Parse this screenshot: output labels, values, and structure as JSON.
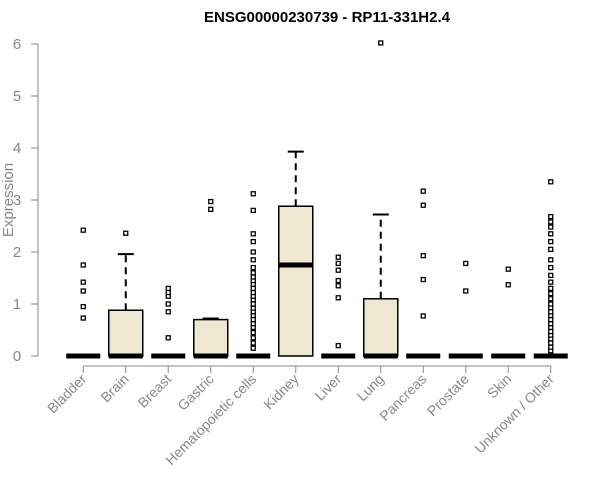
{
  "chart_data": {
    "type": "box",
    "title": "ENSG00000230739 - RP11-331H2.4",
    "xlabel": "",
    "ylabel": "Expression",
    "ylim": [
      0,
      6
    ],
    "yticks": [
      0,
      1,
      2,
      3,
      4,
      5,
      6
    ],
    "box_fill": "#efe8d0",
    "categories": [
      "Bladder",
      "Brain",
      "Breast",
      "Gastric",
      "Hematopoietic cells",
      "Kidney",
      "Liver",
      "Lung",
      "Pancreas",
      "Prostate",
      "Skin",
      "Unknown / Other"
    ],
    "boxes": [
      {
        "q1": 0,
        "median": 0,
        "q3": 0,
        "whisker_low": 0,
        "whisker_high": 0,
        "outliers": [
          0.73,
          0.95,
          1.25,
          1.42,
          1.75,
          2.42
        ]
      },
      {
        "q1": 0,
        "median": 0,
        "q3": 0.88,
        "whisker_low": 0,
        "whisker_high": 1.96,
        "outliers": [
          2.36
        ]
      },
      {
        "q1": 0,
        "median": 0,
        "q3": 0,
        "whisker_low": 0,
        "whisker_high": 0,
        "outliers": [
          0.35,
          0.85,
          1.0,
          1.15,
          1.22,
          1.3
        ]
      },
      {
        "q1": 0,
        "median": 0,
        "q3": 0.7,
        "whisker_low": 0,
        "whisker_high": 0.72,
        "outliers": [
          2.82,
          2.97
        ]
      },
      {
        "q1": 0,
        "median": 0,
        "q3": 0,
        "whisker_low": 0,
        "whisker_high": 0,
        "outliers": [
          0.15,
          0.25,
          0.35,
          0.45,
          0.55,
          0.62,
          0.7,
          0.78,
          0.85,
          0.92,
          1.0,
          1.08,
          1.15,
          1.22,
          1.3,
          1.38,
          1.45,
          1.52,
          1.6,
          1.7,
          1.85,
          2.0,
          2.2,
          2.35,
          2.8,
          3.12
        ]
      },
      {
        "q1": 0,
        "median": 1.75,
        "q3": 2.88,
        "whisker_low": 0,
        "whisker_high": 3.93,
        "outliers": []
      },
      {
        "q1": 0,
        "median": 0,
        "q3": 0,
        "whisker_low": 0,
        "whisker_high": 0,
        "outliers": [
          0.2,
          1.12,
          1.35,
          1.45,
          1.65,
          1.78,
          1.9
        ]
      },
      {
        "q1": 0,
        "median": 0,
        "q3": 1.1,
        "whisker_low": 0,
        "whisker_high": 2.72,
        "outliers": [
          6.02
        ]
      },
      {
        "q1": 0,
        "median": 0,
        "q3": 0,
        "whisker_low": 0,
        "whisker_high": 0,
        "outliers": [
          0.77,
          1.47,
          1.93,
          2.9,
          3.17
        ]
      },
      {
        "q1": 0,
        "median": 0,
        "q3": 0,
        "whisker_low": 0,
        "whisker_high": 0,
        "outliers": [
          1.25,
          1.78
        ]
      },
      {
        "q1": 0,
        "median": 0,
        "q3": 0,
        "whisker_low": 0,
        "whisker_high": 0,
        "outliers": [
          1.37,
          1.67
        ]
      },
      {
        "q1": 0,
        "median": 0,
        "q3": 0,
        "whisker_low": 0,
        "whisker_high": 0,
        "outliers": [
          0.1,
          0.17,
          0.25,
          0.33,
          0.4,
          0.47,
          0.55,
          0.62,
          0.7,
          0.78,
          0.85,
          0.93,
          1.0,
          1.1,
          1.2,
          1.3,
          1.42,
          1.55,
          1.7,
          1.85,
          2.05,
          2.2,
          2.35,
          2.48,
          2.58,
          2.68,
          3.35
        ]
      }
    ]
  }
}
